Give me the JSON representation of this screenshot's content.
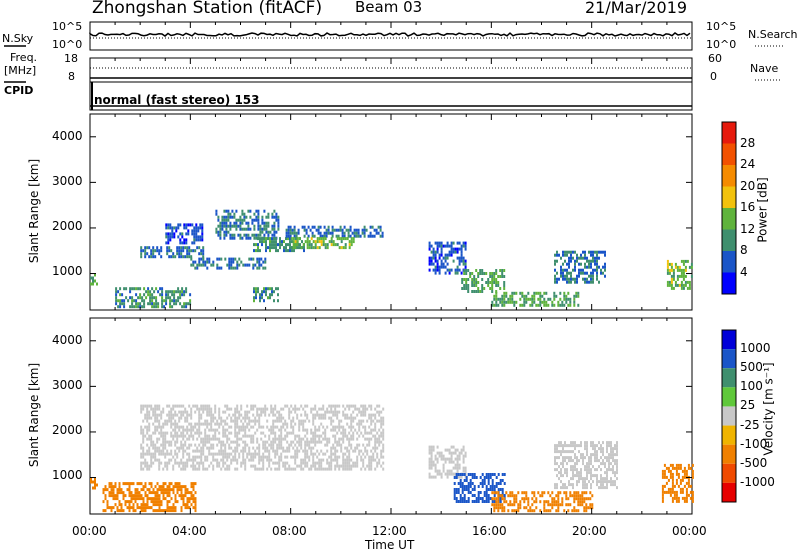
{
  "header": {
    "station": "Zhongshan Station (fitACF)",
    "beam": "Beam 03",
    "date": "21/Mar/2019"
  },
  "summary_panel": {
    "left_labels": [
      "N.Sky",
      "Freq.",
      "[MHz]",
      "CPID"
    ],
    "right_labels": [
      "N.Search",
      "Nave"
    ],
    "sky_ticks": [
      "10^5",
      "10^0"
    ],
    "freq_ticks": [
      "18",
      "8"
    ],
    "right_top_ticks": [
      "10^5",
      "10^0"
    ],
    "nave_ticks": [
      "60",
      "0"
    ],
    "cpid_text": "normal (fast stereo) 153"
  },
  "colors": {
    "power_scale": [
      "#0000ff",
      "#1a55c8",
      "#3f8f6e",
      "#5fb33c",
      "#f2c20d",
      "#f58b00",
      "#f25100",
      "#e61a0d"
    ],
    "velocity_scale": [
      "#0000d8",
      "#1a55c8",
      "#3f8f6e",
      "#5fc83a",
      "#c8c8c8",
      "#f0b400",
      "#f08000",
      "#f04a00",
      "#e60000"
    ]
  },
  "chart_data": [
    {
      "type": "heatmap",
      "name": "power",
      "ylabel": "Slant Range [km]",
      "ylim": [
        200,
        4500
      ],
      "yticks": [
        "4000",
        "3000",
        "2000",
        "1000"
      ],
      "colorbar_label": "Power [dB]",
      "colorbar_ticks": [
        "28",
        "24",
        "20",
        "16",
        "12",
        "8",
        "4"
      ],
      "clim": [
        0,
        30
      ],
      "regions": [
        {
          "t0": 2.0,
          "t1": 4.5,
          "r0": 1350,
          "r1": 1600,
          "v": 8
        },
        {
          "t0": 3.0,
          "t1": 4.5,
          "r0": 1700,
          "r1": 2100,
          "v": 6
        },
        {
          "t0": 4.0,
          "t1": 7.0,
          "r0": 1150,
          "r1": 1350,
          "v": 8
        },
        {
          "t0": 5.0,
          "t1": 7.5,
          "r0": 1800,
          "r1": 2400,
          "v": 8
        },
        {
          "t0": 6.5,
          "t1": 8.5,
          "r0": 1500,
          "r1": 1800,
          "v": 10
        },
        {
          "t0": 7.8,
          "t1": 11.7,
          "r0": 1800,
          "r1": 2050,
          "v": 7
        },
        {
          "t0": 8.0,
          "t1": 10.5,
          "r0": 1550,
          "r1": 1800,
          "v": 14
        },
        {
          "t0": 0.0,
          "t1": 0.3,
          "r0": 800,
          "r1": 1000,
          "v": 12
        },
        {
          "t0": 1.0,
          "t1": 4.0,
          "r0": 300,
          "r1": 700,
          "v": 10
        },
        {
          "t0": 6.5,
          "t1": 7.5,
          "r0": 400,
          "r1": 700,
          "v": 10
        },
        {
          "t0": 13.5,
          "t1": 15.0,
          "r0": 1000,
          "r1": 1700,
          "v": 6
        },
        {
          "t0": 14.8,
          "t1": 16.5,
          "r0": 600,
          "r1": 1100,
          "v": 12
        },
        {
          "t0": 16.0,
          "t1": 19.5,
          "r0": 300,
          "r1": 600,
          "v": 12
        },
        {
          "t0": 18.5,
          "t1": 20.5,
          "r0": 800,
          "r1": 1500,
          "v": 8
        },
        {
          "t0": 23.0,
          "t1": 24.0,
          "r0": 700,
          "r1": 1300,
          "v": 14
        }
      ]
    },
    {
      "type": "heatmap",
      "name": "velocity",
      "xlabel": "Time UT",
      "ylabel": "Slant Range [km]",
      "ylim": [
        200,
        4500
      ],
      "yticks": [
        "4000",
        "3000",
        "2000",
        "1000"
      ],
      "xticks": [
        "00:00",
        "04:00",
        "08:00",
        "12:00",
        "16:00",
        "20:00",
        "00:00"
      ],
      "colorbar_label": "Velocity [m s⁻¹]",
      "colorbar_ticks": [
        "1000",
        "500",
        "100",
        "25",
        "-25",
        "-100",
        "-500",
        "-1000"
      ],
      "regions": [
        {
          "t0": 2.0,
          "t1": 11.7,
          "r0": 1200,
          "r1": 2600,
          "v": 0
        },
        {
          "t0": 0.0,
          "t1": 0.3,
          "r0": 800,
          "r1": 1000,
          "v": -200
        },
        {
          "t0": 0.5,
          "t1": 4.2,
          "r0": 300,
          "r1": 900,
          "v": -300
        },
        {
          "t0": 13.5,
          "t1": 15.0,
          "r0": 1000,
          "r1": 1700,
          "v": 0
        },
        {
          "t0": 14.5,
          "t1": 16.5,
          "r0": 500,
          "r1": 1100,
          "v": 150
        },
        {
          "t0": 16.0,
          "t1": 20.0,
          "r0": 300,
          "r1": 700,
          "v": -250
        },
        {
          "t0": 18.5,
          "t1": 21.0,
          "r0": 800,
          "r1": 1800,
          "v": 0
        },
        {
          "t0": 22.8,
          "t1": 24.0,
          "r0": 500,
          "r1": 1300,
          "v": -150
        }
      ]
    }
  ]
}
